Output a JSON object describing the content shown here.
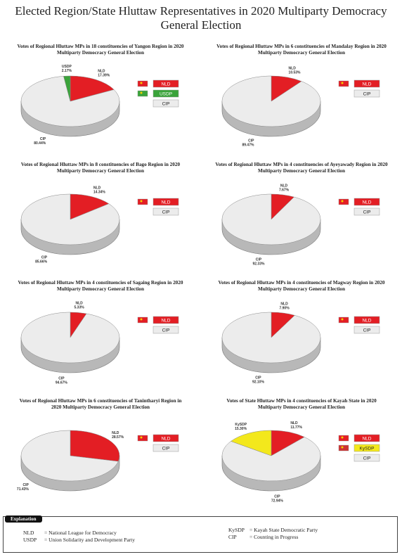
{
  "title": "Elected Region/State Hluttaw Representatives in  2020 Multiparty Democracy General Election",
  "chart_data": [
    {
      "type": "pie",
      "title": "Votes of Regional Hluttaw MPs in 18 constituencies of Yangon Region in 2020 Multiparty Democracy General Election",
      "categories": [
        "NLD",
        "USDP",
        "CIP"
      ],
      "values": [
        17.39,
        2.17,
        80.44
      ],
      "value_labels": [
        "17.39%",
        "2.17%",
        "80.44%"
      ],
      "colors": [
        "#e31e24",
        "#3aa33a",
        "#ececec"
      ]
    },
    {
      "type": "pie",
      "title": "Votes of Regional Hluttaw MPs in 6 constituencies of Mandalay Region in 2020 Multiparty Democracy General Election",
      "categories": [
        "NLD",
        "CIP"
      ],
      "values": [
        10.53,
        89.47
      ],
      "value_labels": [
        "10.53%",
        "89.47%"
      ],
      "colors": [
        "#e31e24",
        "#ececec"
      ]
    },
    {
      "type": "pie",
      "title": "Votes of Regional Hluttaw MPs in 8 constituencies of Bago Region in 2020 Multiparty Democracy General Election",
      "categories": [
        "NLD",
        "CIP"
      ],
      "values": [
        14.34,
        85.66
      ],
      "value_labels": [
        "14.34%",
        "85.66%"
      ],
      "colors": [
        "#e31e24",
        "#ececec"
      ]
    },
    {
      "type": "pie",
      "title": "Votes of Regional Hluttaw MPs in 4 constituencies of Ayeyawady Region in 2020 Multiparty Democracy General Election",
      "categories": [
        "NLD",
        "CIP"
      ],
      "values": [
        7.67,
        92.33
      ],
      "value_labels": [
        "7.67%",
        "92.33%"
      ],
      "colors": [
        "#e31e24",
        "#ececec"
      ]
    },
    {
      "type": "pie",
      "title": "Votes of Regional Hluttaw MPs in 4 constituencies of Sagaing Region in 2020 Multiparty Democracy General Election",
      "categories": [
        "NLD",
        "CIP"
      ],
      "values": [
        5.33,
        94.67
      ],
      "value_labels": [
        "5.33%",
        "94.67%"
      ],
      "colors": [
        "#e31e24",
        "#ececec"
      ]
    },
    {
      "type": "pie",
      "title": "Votes of Regional Hluttaw MPs in 4 constituencies of Magway Region in 2020 Multiparty Democracy General Election",
      "categories": [
        "NLD",
        "CIP"
      ],
      "values": [
        7.9,
        92.1
      ],
      "value_labels": [
        "7.90%",
        "92.10%"
      ],
      "colors": [
        "#e31e24",
        "#ececec"
      ]
    },
    {
      "type": "pie",
      "title": "Votes of Regional Hluttaw MPs in 6 constituencies of Tanintharyi Region in 2020 Multiparty Democracy General Election",
      "categories": [
        "NLD",
        "CIP"
      ],
      "values": [
        28.57,
        71.43
      ],
      "value_labels": [
        "28.57%",
        "71.43%"
      ],
      "colors": [
        "#e31e24",
        "#ececec"
      ]
    },
    {
      "type": "pie",
      "title": "Votes of State Hluttaw MPs in 4 constituencies of Kayah State in 2020 Multiparty Democracy General Election",
      "categories": [
        "NLD",
        "KySDP",
        "CIP"
      ],
      "values": [
        11.77,
        15.3,
        72.94
      ],
      "value_labels": [
        "11.77%",
        "15.30%",
        "72.94%"
      ],
      "colors": [
        "#e31e24",
        "#f3e81c",
        "#ececec"
      ]
    }
  ],
  "explanation": {
    "heading": "Explanation",
    "items": [
      {
        "abbr": "NLD",
        "desc": "National League for Democracy"
      },
      {
        "abbr": "USDP",
        "desc": "Union Solidarity and Development Party"
      },
      {
        "abbr": "KySDP",
        "desc": "Kayah State Democratic Party"
      },
      {
        "abbr": "CIP",
        "desc": "Counting in Progress"
      }
    ]
  }
}
